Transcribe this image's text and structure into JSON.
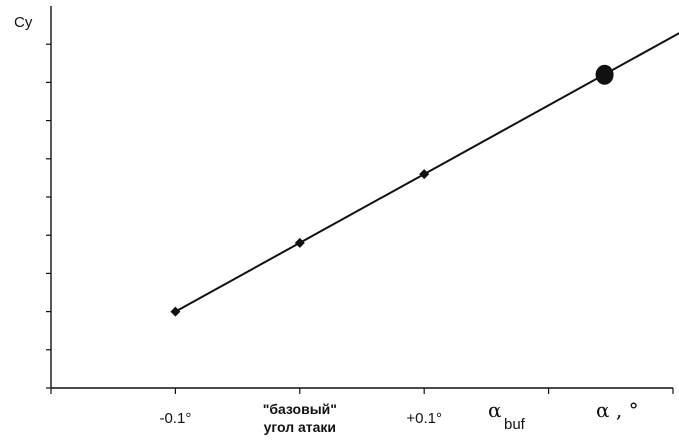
{
  "chart_data": {
    "type": "line",
    "ylabel": "Cy",
    "xlabel": "α , °",
    "x_ticks": [
      {
        "lines": [
          "-0.1°"
        ],
        "x": -0.1
      },
      {
        "lines": [
          "\"базовый\"",
          "угол атаки"
        ],
        "x": 0.0
      },
      {
        "lines": [
          "+0.1°"
        ],
        "x": 0.1
      }
    ],
    "alpha_buf_label": {
      "symbol": "α",
      "subscript": "buf"
    },
    "series": [
      {
        "points": [
          {
            "x": -0.1,
            "y": 0.1
          },
          {
            "x": 0.0,
            "y": 0.28
          },
          {
            "x": 0.1,
            "y": 0.46
          },
          {
            "x": 0.245,
            "y": 0.72
          }
        ],
        "markers": [
          "diamond",
          "diamond",
          "diamond",
          "circle"
        ]
      }
    ],
    "xlim": [
      -0.2,
      0.3
    ],
    "ylim": [
      -0.1,
      0.9
    ],
    "line_extent": [
      -0.1,
      0.31
    ],
    "grid": false
  }
}
